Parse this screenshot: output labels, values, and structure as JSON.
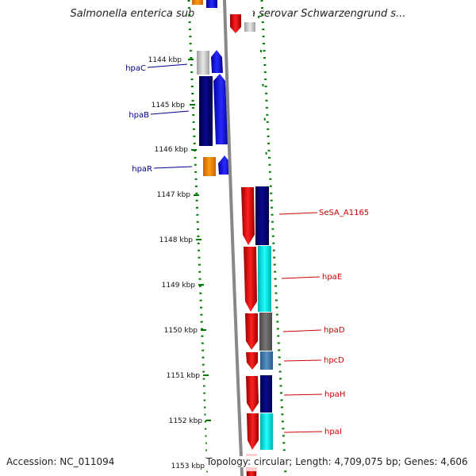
{
  "title": "Salmonella enterica subsp. enterica serovar Schwarzengrund s...",
  "accession_label": "Accession: NC_011094",
  "topology_label": "Topology: circular; Length: 4,709,075 bp; Genes: 4,606",
  "ticks": [
    "1144 kbp",
    "1145 kbp",
    "1146 kbp",
    "1147 kbp",
    "1148 kbp",
    "1149 kbp",
    "1150 kbp",
    "1151 kbp",
    "1152 kbp",
    "1153 kbp"
  ],
  "genes_left": [
    {
      "label": "hpaC",
      "color": "#00008b"
    },
    {
      "label": "hpaB",
      "color": "#00008b"
    },
    {
      "label": "hpaR",
      "color": "#00008b"
    }
  ],
  "genes_right": [
    {
      "label": "SeSA_A1165",
      "color": "#cc0000"
    },
    {
      "label": "hpaE",
      "color": "#cc0000"
    },
    {
      "label": "hpaD",
      "color": "#cc0000"
    },
    {
      "label": "hpcD",
      "color": "#cc0000"
    },
    {
      "label": "hpaH",
      "color": "#cc0000"
    },
    {
      "label": "hpaI",
      "color": "#cc0000"
    }
  ],
  "colors": {
    "tick": "#007700",
    "backbone": "#888888",
    "forward_strand": "#ff0000",
    "reverse_strand": "#0000ff",
    "cog_navy": "#000080",
    "cog_cyan": "#00e5e5",
    "cog_gray": "#777777",
    "cog_steelblue": "#4682b4",
    "cog_orange": "#ff8c00",
    "cog_lightgray": "#c8c8c8"
  }
}
